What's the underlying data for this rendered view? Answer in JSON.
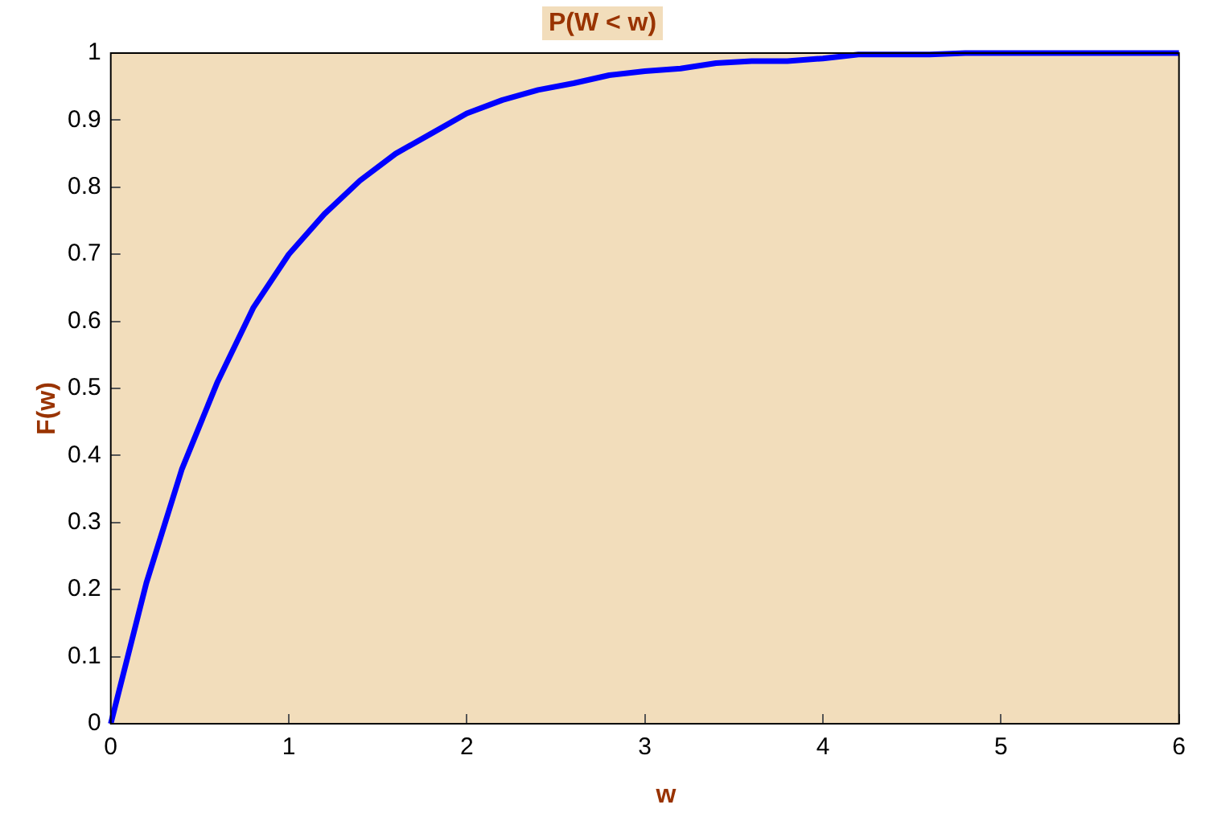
{
  "chart_data": {
    "type": "line",
    "title": "P(W < w)",
    "xlabel": "w",
    "ylabel": "F(w)",
    "x": [
      0,
      0.2,
      0.4,
      0.6,
      0.8,
      1,
      1.2,
      1.4,
      1.6,
      1.8,
      2,
      2.2,
      2.4,
      2.6,
      2.8,
      3,
      3.2,
      3.4,
      3.6,
      3.8,
      4,
      4.2,
      4.4,
      4.6,
      4.8,
      5,
      5.2,
      5.4,
      5.6,
      5.8,
      6
    ],
    "series": [
      {
        "color": "#0000ff",
        "values": [
          0,
          0.21,
          0.38,
          0.51,
          0.62,
          0.7,
          0.76,
          0.81,
          0.85,
          0.88,
          0.91,
          0.93,
          0.945,
          0.955,
          0.967,
          0.973,
          0.977,
          0.985,
          0.988,
          0.988,
          0.992,
          0.998,
          0.998,
          0.998,
          1,
          1,
          1,
          1,
          1,
          1,
          1
        ]
      }
    ],
    "xlim": [
      0,
      6
    ],
    "xticks": [
      0,
      1,
      2,
      3,
      4,
      5,
      6
    ],
    "ylim": [
      0,
      1
    ],
    "yticks": [
      0,
      0.1,
      0.2,
      0.3,
      0.4,
      0.5,
      0.6,
      0.7,
      0.8,
      0.9,
      1
    ],
    "grid": false,
    "legend": false,
    "marker": "none",
    "line_style": "solid"
  }
}
